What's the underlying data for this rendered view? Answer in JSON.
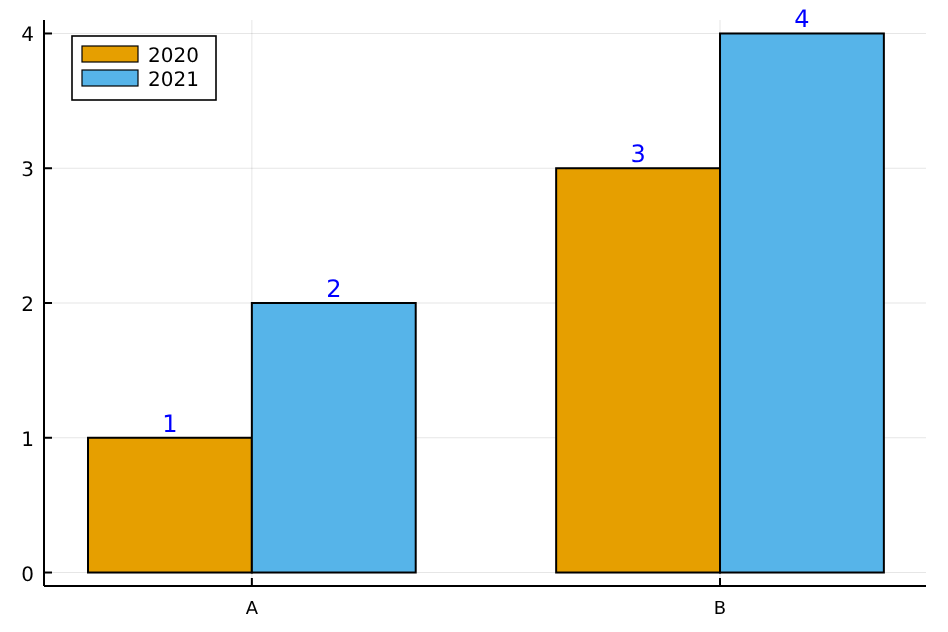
{
  "chart_data": {
    "type": "bar",
    "categories": [
      "A",
      "B"
    ],
    "series": [
      {
        "name": "2020",
        "color": "#e69f00",
        "values": [
          1,
          3
        ]
      },
      {
        "name": "2021",
        "color": "#56b4e9",
        "values": [
          2,
          4
        ]
      }
    ],
    "ylim": [
      -0.1,
      4.1
    ],
    "yticks": [
      0,
      1,
      2,
      3,
      4
    ],
    "grid": true,
    "legend": "top left",
    "data_labels": true
  }
}
